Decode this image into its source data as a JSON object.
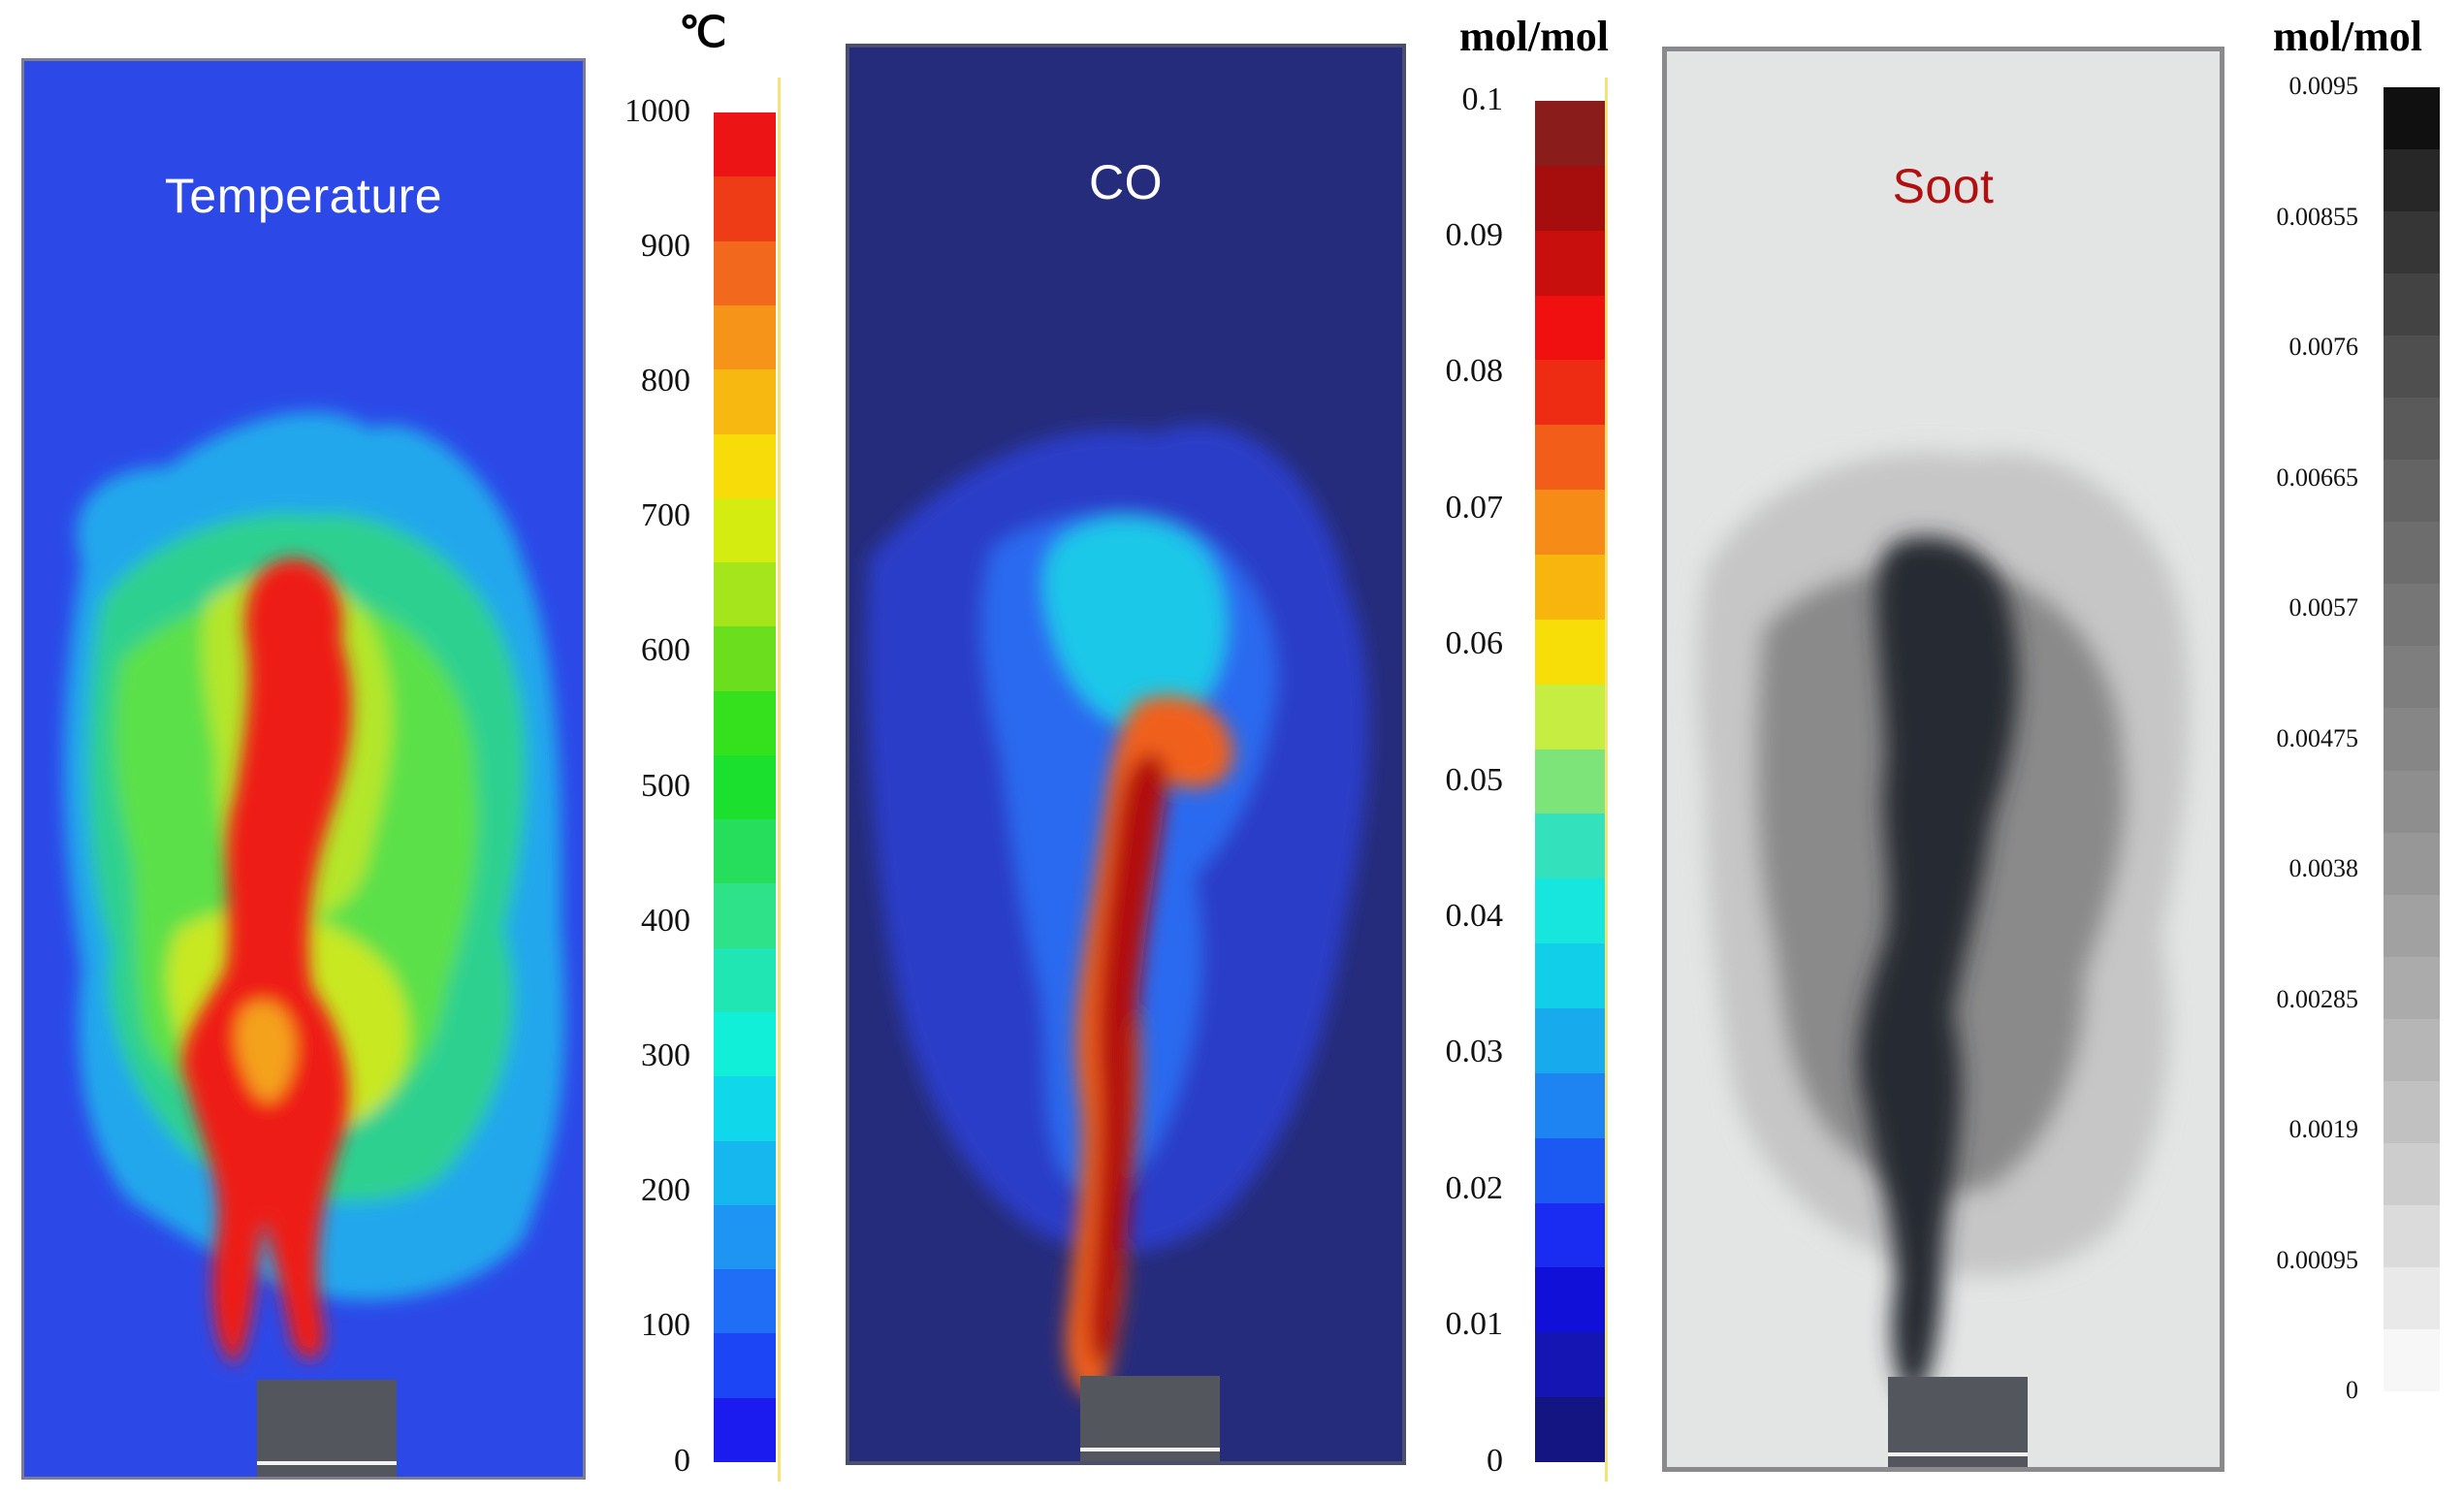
{
  "chart_data": [
    {
      "type": "heatmap",
      "title": "Temperature",
      "colorbar": {
        "unit": "℃",
        "ticks": [
          "0",
          "100",
          "200",
          "300",
          "400",
          "500",
          "600",
          "700",
          "800",
          "900",
          "1000"
        ],
        "range": [
          0,
          1000
        ],
        "colors": [
          "#1b1bf0",
          "#1c46f5",
          "#1f6ef5",
          "#1e95f3",
          "#16b6ee",
          "#10d8ea",
          "#12efd8",
          "#20e6b4",
          "#2ee28a",
          "#26de5c",
          "#1be02d",
          "#35e01c",
          "#6bde1d",
          "#a4e51c",
          "#d4ec10",
          "#f7dc09",
          "#f8b812",
          "#f6941a",
          "#f2681c",
          "#ee3c16",
          "#ec1414"
        ]
      }
    },
    {
      "type": "heatmap",
      "title": "CO",
      "colorbar": {
        "unit": "mol/mol",
        "ticks": [
          "0",
          "0.01",
          "0.02",
          "0.03",
          "0.04",
          "0.05",
          "0.06",
          "0.07",
          "0.08",
          "0.09",
          "0.1"
        ],
        "range": [
          0,
          0.1
        ],
        "colors": [
          "#141483",
          "#1515b4",
          "#1010d8",
          "#1a2cf2",
          "#1c58f2",
          "#1d84f2",
          "#17abee",
          "#12cfe9",
          "#16e6de",
          "#33e2bc",
          "#7de47a",
          "#c6ee42",
          "#f7de08",
          "#f7b50e",
          "#f68c17",
          "#f25e19",
          "#ee2b13",
          "#f01010",
          "#c90e0e",
          "#a60d0d",
          "#8b1c1c"
        ]
      }
    },
    {
      "type": "heatmap",
      "title": "Soot",
      "colorbar": {
        "unit": "mol/mol",
        "ticks": [
          "0",
          "0.00095",
          "0.0019",
          "0.00285",
          "0.0038",
          "0.00475",
          "0.0057",
          "0.00665",
          "0.0076",
          "0.00855",
          "0.0095"
        ],
        "range": [
          0,
          0.0095
        ],
        "colors": [
          "#f7f7f7",
          "#e9e9e9",
          "#dbdbdb",
          "#cdcdcd",
          "#c1c1c1",
          "#b6b6b6",
          "#ababab",
          "#a1a1a1",
          "#979797",
          "#8e8e8e",
          "#868686",
          "#7e7e7e",
          "#767676",
          "#6d6d6d",
          "#646464",
          "#5a5a5a",
          "#4f4f4f",
          "#434343",
          "#363636",
          "#272727",
          "#101010"
        ]
      }
    }
  ]
}
